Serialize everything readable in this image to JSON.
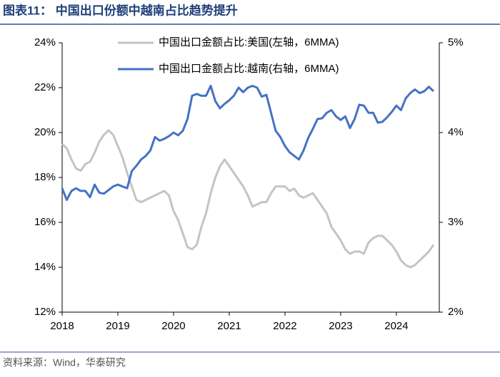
{
  "chart_data": {
    "type": "line",
    "title": "图表11：  中国出口份额中越南占比趋势提升",
    "source": "资料来源：Wind，华泰研究",
    "x": [
      2018,
      2018.083,
      2018.167,
      2018.25,
      2018.333,
      2018.417,
      2018.5,
      2018.583,
      2018.667,
      2018.75,
      2018.833,
      2018.917,
      2019,
      2019.083,
      2019.167,
      2019.25,
      2019.333,
      2019.417,
      2019.5,
      2019.583,
      2019.667,
      2019.75,
      2019.833,
      2019.917,
      2020,
      2020.083,
      2020.167,
      2020.25,
      2020.333,
      2020.417,
      2020.5,
      2020.583,
      2020.667,
      2020.75,
      2020.833,
      2020.917,
      2021,
      2021.083,
      2021.167,
      2021.25,
      2021.333,
      2021.417,
      2021.5,
      2021.583,
      2021.667,
      2021.75,
      2021.833,
      2021.917,
      2022,
      2022.083,
      2022.167,
      2022.25,
      2022.333,
      2022.417,
      2022.5,
      2022.583,
      2022.667,
      2022.75,
      2022.833,
      2022.917,
      2023,
      2023.083,
      2023.167,
      2023.25,
      2023.333,
      2023.417,
      2023.5,
      2023.583,
      2023.667,
      2023.75,
      2023.833,
      2023.917,
      2024,
      2024.083,
      2024.167,
      2024.25,
      2024.333,
      2024.417,
      2024.5,
      2024.583,
      2024.667
    ],
    "series": [
      {
        "name": "中国出口金额占比:美国(左轴，6MMA)",
        "color": "#c4c4c4",
        "axis": "y",
        "values": [
          19.5,
          19.3,
          18.8,
          18.4,
          18.3,
          18.6,
          18.7,
          19.1,
          19.6,
          19.9,
          20.1,
          19.9,
          19.4,
          18.9,
          18.2,
          17.6,
          17.0,
          16.9,
          17.0,
          17.1,
          17.2,
          17.3,
          17.4,
          17.2,
          16.5,
          16.1,
          15.5,
          14.9,
          14.8,
          15.0,
          15.8,
          16.4,
          17.3,
          18.0,
          18.5,
          18.8,
          18.5,
          18.2,
          17.9,
          17.6,
          17.2,
          16.7,
          16.8,
          16.9,
          16.9,
          17.3,
          17.6,
          17.6,
          17.6,
          17.4,
          17.5,
          17.2,
          17.1,
          17.2,
          17.3,
          17.0,
          16.7,
          16.4,
          15.8,
          15.5,
          15.2,
          14.8,
          14.6,
          14.7,
          14.7,
          14.6,
          15.1,
          15.3,
          15.4,
          15.4,
          15.2,
          15.0,
          14.7,
          14.3,
          14.1,
          14.0,
          14.1,
          14.3,
          14.5,
          14.7,
          15.0
        ]
      },
      {
        "name": "中国出口金额占比:越南(右轴，6MMA)",
        "color": "#4472c4",
        "axis": "y2",
        "values": [
          3.38,
          3.25,
          3.35,
          3.38,
          3.35,
          3.35,
          3.28,
          3.42,
          3.33,
          3.32,
          3.36,
          3.4,
          3.42,
          3.4,
          3.38,
          3.57,
          3.63,
          3.7,
          3.74,
          3.8,
          3.95,
          3.91,
          3.93,
          3.96,
          4.0,
          3.97,
          4.02,
          4.15,
          4.41,
          4.43,
          4.41,
          4.41,
          4.52,
          4.35,
          4.27,
          4.32,
          4.36,
          4.41,
          4.5,
          4.45,
          4.5,
          4.52,
          4.5,
          4.4,
          4.42,
          4.22,
          4.02,
          3.95,
          3.85,
          3.78,
          3.74,
          3.7,
          3.8,
          3.94,
          4.04,
          4.15,
          4.16,
          4.22,
          4.25,
          4.18,
          4.14,
          4.18,
          4.05,
          4.15,
          4.31,
          4.3,
          4.22,
          4.22,
          4.11,
          4.12,
          4.17,
          4.23,
          4.3,
          4.25,
          4.38,
          4.44,
          4.48,
          4.44,
          4.46,
          4.51,
          4.46
        ]
      }
    ],
    "xlim": [
      2018,
      2024.77
    ],
    "xticks": [
      2018,
      2019,
      2020,
      2021,
      2022,
      2023,
      2024
    ],
    "ylim": [
      12,
      24
    ],
    "yticks": [
      {
        "value": 12,
        "label": "12%"
      },
      {
        "value": 14,
        "label": "14%"
      },
      {
        "value": 16,
        "label": "16%"
      },
      {
        "value": 18,
        "label": "18%"
      },
      {
        "value": 20,
        "label": "20%"
      },
      {
        "value": 22,
        "label": "22%"
      },
      {
        "value": 24,
        "label": "24%"
      }
    ],
    "y2lim": [
      2,
      5
    ],
    "y2ticks": [
      {
        "value": 2,
        "label": "2%"
      },
      {
        "value": 3,
        "label": "3%"
      },
      {
        "value": 4,
        "label": "4%"
      },
      {
        "value": 5,
        "label": "5%"
      }
    ],
    "grid": false
  }
}
